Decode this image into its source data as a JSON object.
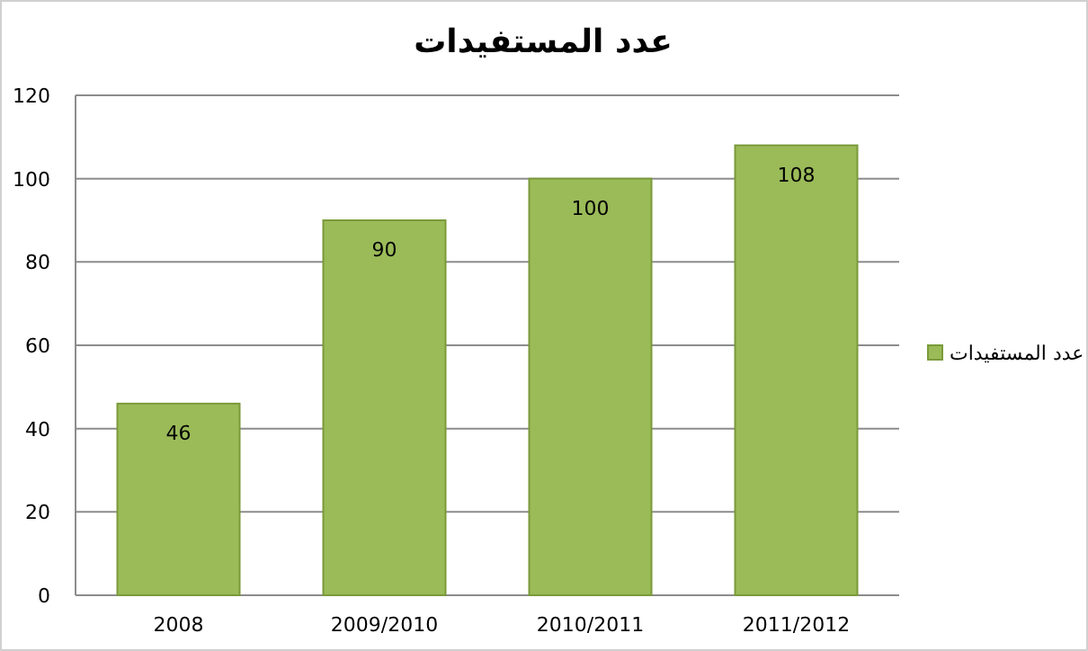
{
  "chart_data": {
    "type": "bar",
    "title": "عدد المستفيدات",
    "categories": [
      "2008",
      "2009/2010",
      "2010/2011",
      "2011/2012"
    ],
    "series": [
      {
        "name": "عدد المستفيدات",
        "color": "#9bbb59",
        "values": [
          46,
          90,
          100,
          108
        ]
      }
    ],
    "ylim": [
      0,
      120
    ],
    "yticks": [
      0,
      20,
      40,
      60,
      80,
      100,
      120
    ],
    "grid": "y",
    "legend": "right",
    "data_labels": true
  }
}
